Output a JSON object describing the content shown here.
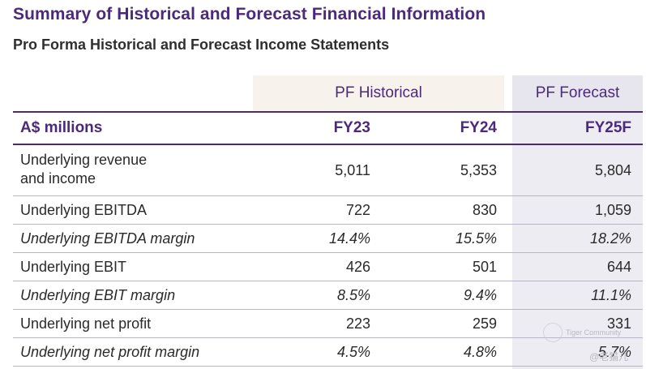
{
  "title": "Summary of Historical and Forecast Financial Information",
  "subtitle": "Pro Forma Historical and Forecast Income Statements",
  "groups": {
    "historical": "PF Historical",
    "forecast": "PF Forecast"
  },
  "columns": {
    "label": "A$ millions",
    "fy23": "FY23",
    "fy24": "FY24",
    "fy25": "FY25F"
  },
  "rows": [
    {
      "label_line1": "Underlying revenue",
      "label_line2": "and income",
      "fy23": "5,011",
      "fy24": "5,353",
      "fy25": "5,804"
    },
    {
      "label": "Underlying EBITDA",
      "fy23": "722",
      "fy24": "830",
      "fy25": "1,059"
    },
    {
      "label": "Underlying EBITDA margin",
      "fy23": "14.4%",
      "fy24": "15.5%",
      "fy25": "18.2%"
    },
    {
      "label": "Underlying EBIT",
      "fy23": "426",
      "fy24": "501",
      "fy25": "644"
    },
    {
      "label": "Underlying EBIT margin",
      "fy23": "8.5%",
      "fy24": "9.4%",
      "fy25": "11.1%"
    },
    {
      "label": "Underlying net profit",
      "fy23": "223",
      "fy24": "259",
      "fy25": "331"
    },
    {
      "label": "Underlying net profit margin",
      "fy23": "4.5%",
      "fy24": "4.8%",
      "fy25": "5.7%"
    }
  ],
  "watermark": {
    "line1": "Tiger Community",
    "line2": "@老猫儿"
  }
}
